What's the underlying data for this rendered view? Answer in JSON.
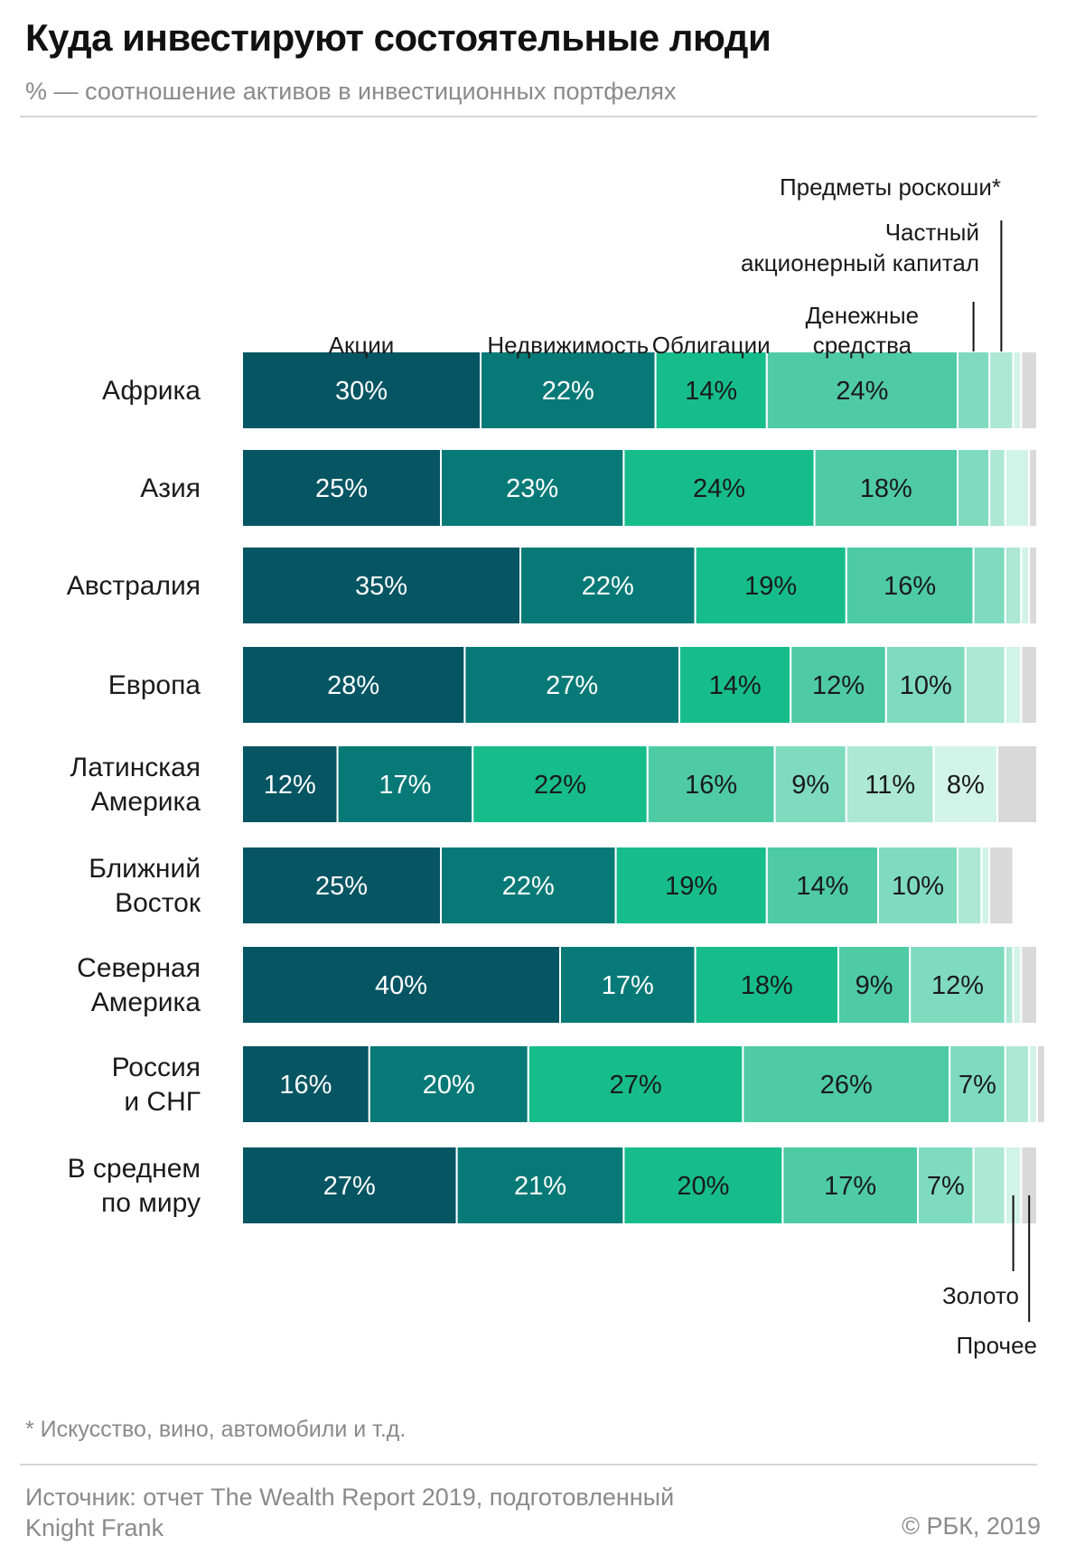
{
  "header": {
    "title": "Куда инвестируют состоятельные люди",
    "subtitle": "% — соотношение активов в инвестиционных портфелях"
  },
  "footer": {
    "footnote": "* Искусство, вино, автомобили и т.д.",
    "source_line1": "Источник: отчет The Wealth Report 2019, подготовленный",
    "source_line2": "Knight Frank",
    "copyright": "© РБК, 2019"
  },
  "chart_data": {
    "type": "bar",
    "orientation": "horizontal",
    "stacked": true,
    "title": "Куда инвестируют состоятельные люди",
    "subtitle": "% — соотношение активов в инвестиционных портфелях",
    "categories": [
      [
        "Африка"
      ],
      [
        "Азия"
      ],
      [
        "Австралия"
      ],
      [
        "Европа"
      ],
      [
        "Латинская",
        "Америка"
      ],
      [
        "Ближний",
        "Восток"
      ],
      [
        "Северная",
        "Америка"
      ],
      [
        "Россия",
        "и СНГ"
      ],
      [
        "В среднем",
        "по миру"
      ]
    ],
    "series": [
      {
        "name": "Акции",
        "color": "#055563",
        "text_color": "#ffffff",
        "values": [
          30,
          25,
          35,
          28,
          12,
          25,
          40,
          16,
          27
        ]
      },
      {
        "name": "Недвижимость",
        "color": "#077a77",
        "text_color": "#ffffff",
        "values": [
          22,
          23,
          22,
          27,
          17,
          22,
          17,
          20,
          21
        ]
      },
      {
        "name": "Облигации",
        "color": "#16bd8a",
        "text_color": "#1a1a1a",
        "values": [
          14,
          24,
          19,
          14,
          22,
          19,
          18,
          27,
          20
        ]
      },
      {
        "name": "Денежные средства",
        "color": "#4ecba3",
        "text_color": "#1a1a1a",
        "values": [
          24,
          18,
          16,
          12,
          16,
          14,
          9,
          26,
          17
        ]
      },
      {
        "name": "Частный акционерный капитал",
        "color": "#7fdbbe",
        "text_color": "#1a1a1a",
        "values": [
          4,
          4,
          4,
          10,
          9,
          10,
          12,
          7,
          7
        ]
      },
      {
        "name": "Предметы роскоши*",
        "color": "#ade8d4",
        "text_color": "#1a1a1a",
        "values": [
          3,
          2,
          2,
          5,
          11,
          3,
          1,
          3,
          4
        ]
      },
      {
        "name": "Золото",
        "color": "#d2f3e8",
        "text_color": "#1a1a1a",
        "values": [
          1,
          3,
          1,
          2,
          8,
          1,
          1,
          1,
          2
        ]
      },
      {
        "name": "Прочее",
        "color": "#d9d9d9",
        "text_color": "#1a1a1a",
        "values": [
          2,
          1,
          1,
          2,
          5,
          3,
          2,
          1,
          2
        ]
      }
    ],
    "data_labels": [
      [
        "30%",
        "22%",
        "14%",
        "24%",
        "",
        "",
        "",
        ""
      ],
      [
        "25%",
        "23%",
        "24%",
        "18%",
        "",
        "",
        "",
        ""
      ],
      [
        "35%",
        "22%",
        "19%",
        "16%",
        "",
        "",
        "",
        ""
      ],
      [
        "28%",
        "27%",
        "14%",
        "12%",
        "10%",
        "",
        "",
        ""
      ],
      [
        "12%",
        "17%",
        "22%",
        "16%",
        "9%",
        "11%",
        "8%",
        ""
      ],
      [
        "25%",
        "22%",
        "19%",
        "14%",
        "10%",
        "",
        "",
        ""
      ],
      [
        "40%",
        "17%",
        "18%",
        "9%",
        "12%",
        "",
        "",
        ""
      ],
      [
        "16%",
        "20%",
        "27%",
        "26%",
        "7%",
        "",
        "",
        ""
      ],
      [
        "27%",
        "21%",
        "20%",
        "17%",
        "7%",
        "",
        "",
        ""
      ]
    ],
    "legend_labels": {
      "stocks": "Акции",
      "real_estate": "Недвижимость",
      "bonds": "Облигации",
      "cash": [
        "Денежные",
        "средства"
      ],
      "private_equity": [
        "Частный",
        "акционерный капитал"
      ],
      "luxury": "Предметы роскоши*",
      "gold": "Золото",
      "other": "Прочее"
    },
    "xlim": [
      0,
      100
    ],
    "legend_placement": "top and bottom, labels above/below bar segments",
    "grid": false
  }
}
